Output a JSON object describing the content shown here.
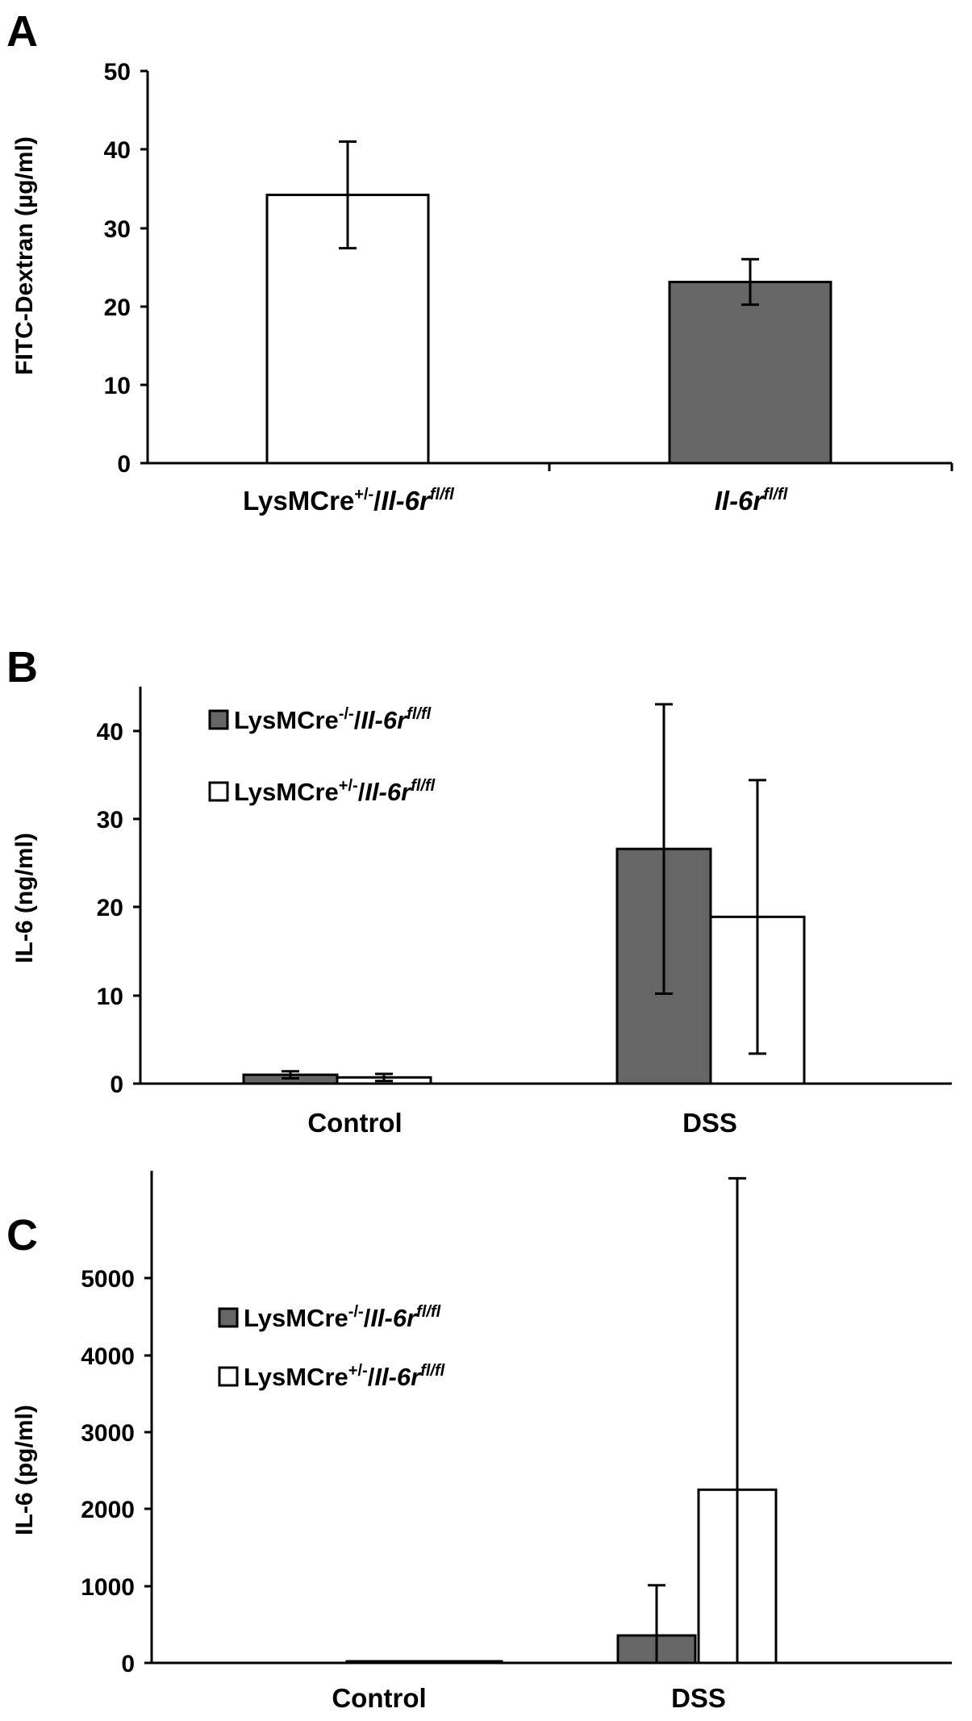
{
  "chart_data": [
    {
      "type": "bar",
      "panel": "A",
      "ylabel": "FITC-Dextran (µg/ml)",
      "ylim": [
        0,
        50
      ],
      "yticks": [
        "0",
        "10",
        "20",
        "30",
        "40",
        "50"
      ],
      "categories": [
        {
          "base": "LysMCre",
          "sup1": "+/-",
          "sep": "/",
          "gene": "Il-6r",
          "sup2": "fl/fl"
        },
        {
          "base": "",
          "sup1": "",
          "sep": "",
          "gene": "Il-6r",
          "sup2": "fl/fl"
        }
      ],
      "series": [
        {
          "values": [
            34.2,
            23.1
          ],
          "errors": [
            6.8,
            2.9
          ],
          "fill": [
            "#ffffff",
            "#666666"
          ]
        }
      ]
    },
    {
      "type": "bar",
      "panel": "B",
      "ylabel": "IL-6 (ng/ml)",
      "ylim": [
        0,
        45
      ],
      "yticks": [
        "0",
        "10",
        "20",
        "30",
        "40"
      ],
      "categories": [
        "Control",
        "DSS"
      ],
      "series": [
        {
          "legend": {
            "base": "LysMCre",
            "sup1": "-/-",
            "sep": "/",
            "gene": "Il-6r",
            "sup2": "fl/fl"
          },
          "fill": "#666666",
          "values": [
            1.0,
            26.6
          ],
          "errors": [
            0.4,
            16.4
          ]
        },
        {
          "legend": {
            "base": "LysMCre",
            "sup1": "+/-",
            "sep": "/",
            "gene": "Il-6r",
            "sup2": "fl/fl"
          },
          "fill": "#ffffff",
          "values": [
            0.7,
            18.9
          ],
          "errors": [
            0.4,
            15.5
          ]
        }
      ]
    },
    {
      "type": "bar",
      "panel": "C",
      "ylabel": "IL-6 (pg/ml)",
      "ylim": [
        0,
        5200
      ],
      "yticks": [
        "0",
        "1000",
        "2000",
        "3000",
        "4000",
        "5000"
      ],
      "categories": [
        "Control",
        "DSS"
      ],
      "series": [
        {
          "legend": {
            "base": "LysMCre",
            "sup1": "-/-",
            "sep": "/",
            "gene": "Il-6r",
            "sup2": "fl/fl"
          },
          "fill": "#666666",
          "values": [
            5,
            290
          ],
          "errors": [
            0,
            530
          ]
        },
        {
          "legend": {
            "base": "LysMCre",
            "sup1": "+/-",
            "sep": "/",
            "gene": "Il-6r",
            "sup2": "fl/fl"
          },
          "fill": "#ffffff",
          "values": [
            5,
            1830
          ],
          "errors": [
            0,
            3290
          ]
        }
      ]
    }
  ]
}
